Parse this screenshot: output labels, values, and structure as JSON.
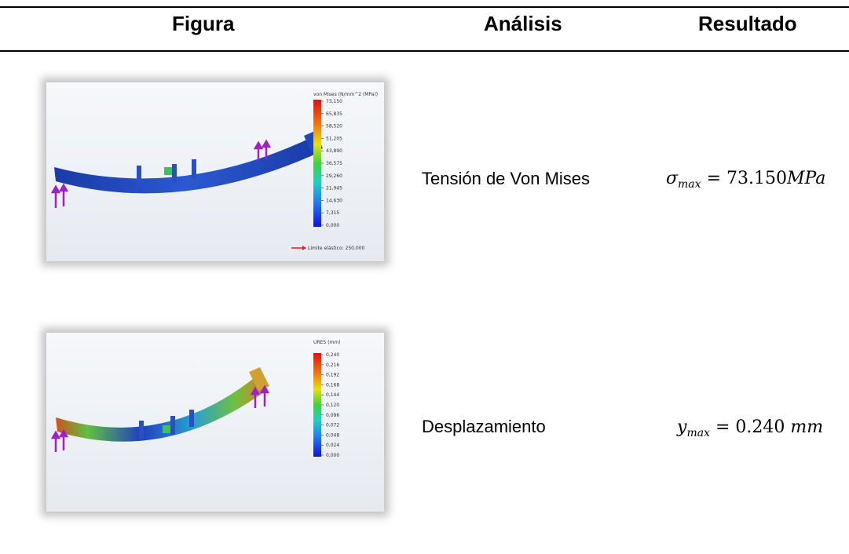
{
  "headers": {
    "figure": "Figura",
    "analysis": "Análisis",
    "result": "Resultado"
  },
  "rows": [
    {
      "analysis": "Tensión de Von Mises",
      "result": {
        "var": "σ",
        "sub": "max",
        "eq": "= 73.150",
        "unit": "MPa"
      },
      "figure": {
        "legend_title": "von Mises (N/mm^2 (MPa))",
        "ticks": [
          "73,150",
          "65,835",
          "58,520",
          "51,205",
          "43,890",
          "36,575",
          "29,260",
          "21,945",
          "14,630",
          "7,315",
          "0,000"
        ],
        "footer": "Límite elástico: 250,000"
      }
    },
    {
      "analysis": "Desplazamiento",
      "result": {
        "var": "y",
        "sub": "max",
        "eq": "= 0.240",
        "unit": "mm"
      },
      "figure": {
        "legend_title": "URES (mm)",
        "ticks": [
          "0,240",
          "0,216",
          "0,192",
          "0,168",
          "0,144",
          "0,120",
          "0,096",
          "0,072",
          "0,048",
          "0,024",
          "0,000"
        ]
      }
    }
  ],
  "colors": {
    "stress_beam": "#1f3fb0",
    "red": "#e02020",
    "purple": "#a020c0"
  }
}
